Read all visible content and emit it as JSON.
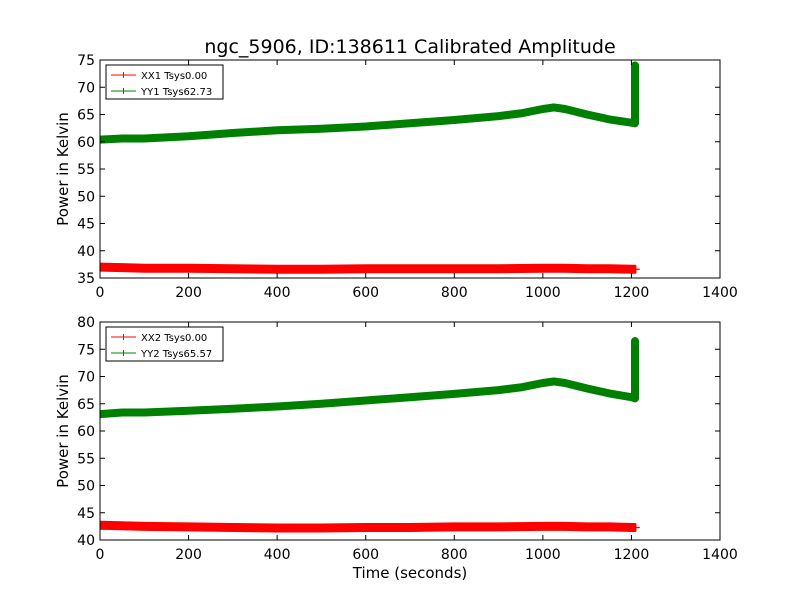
{
  "title": "ngc_5906, ID:138611 Calibrated Amplitude",
  "x_axis_label": "Time (seconds)",
  "colors": {
    "xx": "#ff0000",
    "yy": "#008000",
    "axes": "#000000",
    "background": "#ffffff"
  },
  "chart_data": [
    {
      "type": "line",
      "ylabel": "Power in Kelvin",
      "xlim": [
        0,
        1400
      ],
      "ylim": [
        35,
        75
      ],
      "x_ticks": [
        0,
        200,
        400,
        600,
        800,
        1000,
        1200,
        1400
      ],
      "y_ticks": [
        35,
        40,
        45,
        50,
        55,
        60,
        65,
        70,
        75
      ],
      "grid": false,
      "legend_position": "top-left",
      "series": [
        {
          "name": "XX1 Tsys0.00",
          "color": "#ff0000",
          "x": [
            0,
            50,
            100,
            200,
            300,
            400,
            500,
            600,
            700,
            800,
            900,
            1000,
            1050,
            1100,
            1150,
            1200,
            1210
          ],
          "y": [
            37.0,
            36.9,
            36.8,
            36.8,
            36.7,
            36.6,
            36.6,
            36.7,
            36.7,
            36.7,
            36.7,
            36.8,
            36.8,
            36.7,
            36.7,
            36.6,
            36.6
          ]
        },
        {
          "name": "YY1 Tsys62.73",
          "color": "#008000",
          "x": [
            0,
            50,
            100,
            200,
            300,
            400,
            500,
            600,
            700,
            800,
            900,
            950,
            1000,
            1025,
            1050,
            1100,
            1150,
            1200,
            1208,
            1208,
            1208,
            1208
          ],
          "y": [
            60.4,
            60.6,
            60.6,
            61.0,
            61.6,
            62.1,
            62.4,
            62.8,
            63.4,
            64.0,
            64.7,
            65.2,
            66.0,
            66.3,
            66.0,
            65.0,
            64.1,
            63.5,
            63.4,
            70.5,
            74.0,
            63.4
          ]
        }
      ]
    },
    {
      "type": "line",
      "ylabel": "Power in Kelvin",
      "xlabel": "Time (seconds)",
      "xlim": [
        0,
        1400
      ],
      "ylim": [
        40,
        80
      ],
      "x_ticks": [
        0,
        200,
        400,
        600,
        800,
        1000,
        1200,
        1400
      ],
      "y_ticks": [
        40,
        45,
        50,
        55,
        60,
        65,
        70,
        75,
        80
      ],
      "grid": false,
      "legend_position": "top-left",
      "series": [
        {
          "name": "XX2 Tsys0.00",
          "color": "#ff0000",
          "x": [
            0,
            50,
            100,
            200,
            300,
            400,
            500,
            600,
            700,
            800,
            900,
            1000,
            1050,
            1100,
            1150,
            1200,
            1210
          ],
          "y": [
            42.7,
            42.6,
            42.5,
            42.4,
            42.3,
            42.2,
            42.2,
            42.3,
            42.3,
            42.4,
            42.4,
            42.5,
            42.5,
            42.4,
            42.4,
            42.3,
            42.3
          ]
        },
        {
          "name": "YY2 Tsys65.57",
          "color": "#008000",
          "x": [
            0,
            50,
            100,
            200,
            300,
            400,
            500,
            600,
            700,
            800,
            900,
            950,
            1000,
            1025,
            1050,
            1100,
            1150,
            1200,
            1208,
            1208,
            1208,
            1208
          ],
          "y": [
            63.1,
            63.4,
            63.4,
            63.7,
            64.1,
            64.5,
            65.0,
            65.6,
            66.2,
            66.8,
            67.5,
            68.0,
            68.8,
            69.1,
            68.8,
            67.8,
            66.9,
            66.2,
            66.0,
            73.0,
            76.5,
            66.0
          ]
        }
      ]
    }
  ]
}
